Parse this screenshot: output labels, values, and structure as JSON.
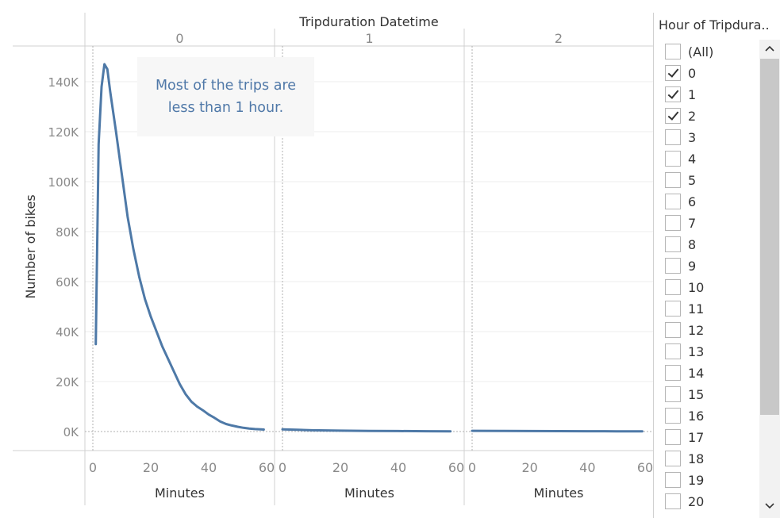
{
  "chart_data": {
    "type": "line",
    "title": "Tripduration Datetime",
    "ylabel": "Number of bikes",
    "xlabel": "Minutes",
    "ylim": [
      0,
      150000
    ],
    "xlim": [
      0,
      60
    ],
    "y_ticks": [
      0,
      20000,
      40000,
      60000,
      80000,
      100000,
      120000,
      140000
    ],
    "y_tick_labels": [
      "0K",
      "20K",
      "40K",
      "60K",
      "80K",
      "100K",
      "120K",
      "140K"
    ],
    "x_ticks": [
      0,
      20,
      40,
      60
    ],
    "x_tick_labels": [
      "0",
      "20",
      "40",
      "60"
    ],
    "color": "#4e79a7",
    "grid": true,
    "panels": [
      {
        "header": "0",
        "x": [
          1,
          2,
          3,
          4,
          5,
          6,
          8,
          10,
          12,
          14,
          16,
          18,
          20,
          22,
          24,
          26,
          28,
          30,
          32,
          34,
          36,
          38,
          40,
          42,
          44,
          46,
          48,
          50,
          52,
          54,
          56,
          58,
          59
        ],
        "y": [
          35000,
          115000,
          138000,
          147000,
          145000,
          136000,
          120000,
          103000,
          86000,
          73000,
          62000,
          53000,
          46000,
          40000,
          34000,
          29000,
          24000,
          19000,
          15000,
          12000,
          10000,
          8500,
          6800,
          5500,
          4000,
          3000,
          2400,
          1900,
          1500,
          1200,
          1000,
          900,
          800
        ]
      },
      {
        "header": "1",
        "x": [
          0,
          5,
          10,
          20,
          30,
          40,
          50,
          58
        ],
        "y": [
          900,
          700,
          500,
          350,
          250,
          180,
          120,
          80
        ]
      },
      {
        "header": "2",
        "x": [
          0,
          10,
          20,
          30,
          40,
          50,
          59
        ],
        "y": [
          300,
          250,
          200,
          160,
          130,
          110,
          90
        ]
      }
    ],
    "annotation": [
      "Most of the trips are",
      "less than 1 hour."
    ]
  },
  "filter": {
    "title": "Hour of Tripdura..",
    "items": [
      {
        "label": "(All)",
        "checked": false
      },
      {
        "label": "0",
        "checked": true
      },
      {
        "label": "1",
        "checked": true
      },
      {
        "label": "2",
        "checked": true
      },
      {
        "label": "3",
        "checked": false
      },
      {
        "label": "4",
        "checked": false
      },
      {
        "label": "5",
        "checked": false
      },
      {
        "label": "6",
        "checked": false
      },
      {
        "label": "7",
        "checked": false
      },
      {
        "label": "8",
        "checked": false
      },
      {
        "label": "9",
        "checked": false
      },
      {
        "label": "10",
        "checked": false
      },
      {
        "label": "11",
        "checked": false
      },
      {
        "label": "12",
        "checked": false
      },
      {
        "label": "13",
        "checked": false
      },
      {
        "label": "14",
        "checked": false
      },
      {
        "label": "15",
        "checked": false
      },
      {
        "label": "16",
        "checked": false
      },
      {
        "label": "17",
        "checked": false
      },
      {
        "label": "18",
        "checked": false
      },
      {
        "label": "19",
        "checked": false
      },
      {
        "label": "20",
        "checked": false
      }
    ],
    "scroll_up_icon": "chevron-up-icon",
    "scroll_down_icon": "chevron-down-icon"
  }
}
